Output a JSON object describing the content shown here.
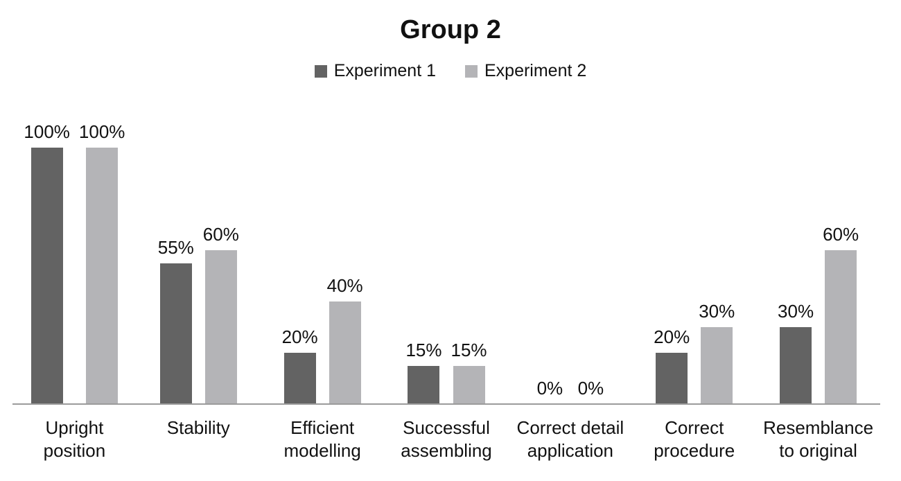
{
  "chart_data": {
    "type": "bar",
    "title": "Group 2",
    "legend_position": "top",
    "grid": false,
    "value_suffix": "%",
    "ylim": [
      0,
      100
    ],
    "categories": [
      "Upright\nposition",
      "Stability",
      "Efficient\nmodelling",
      "Successful\nassembling",
      "Correct detail\napplication",
      "Correct\nprocedure",
      "Resemblance\nto original"
    ],
    "series": [
      {
        "name": "Experiment 1",
        "color": "#636363",
        "values": [
          100,
          55,
          20,
          15,
          0,
          20,
          30
        ]
      },
      {
        "name": "Experiment 2",
        "color": "#b4b4b7",
        "values": [
          100,
          60,
          40,
          15,
          0,
          30,
          60
        ]
      }
    ],
    "axis_line_color": "#9b9b9b",
    "text_color": "#111111"
  }
}
